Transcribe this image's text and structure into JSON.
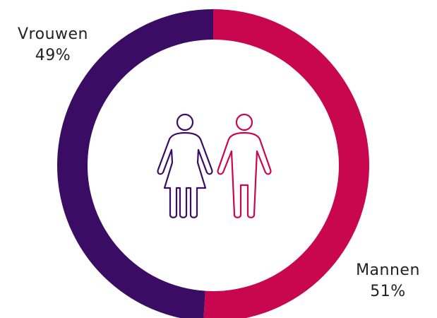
{
  "chart_data": {
    "type": "pie",
    "style": "donut",
    "categories": [
      "Vrouwen",
      "Mannen"
    ],
    "values": [
      49,
      51
    ],
    "value_labels": [
      "49%",
      "51%"
    ],
    "colors": [
      "#3b0c63",
      "#c8074f"
    ],
    "title": "",
    "center_icons": [
      "woman-icon",
      "man-icon"
    ]
  }
}
